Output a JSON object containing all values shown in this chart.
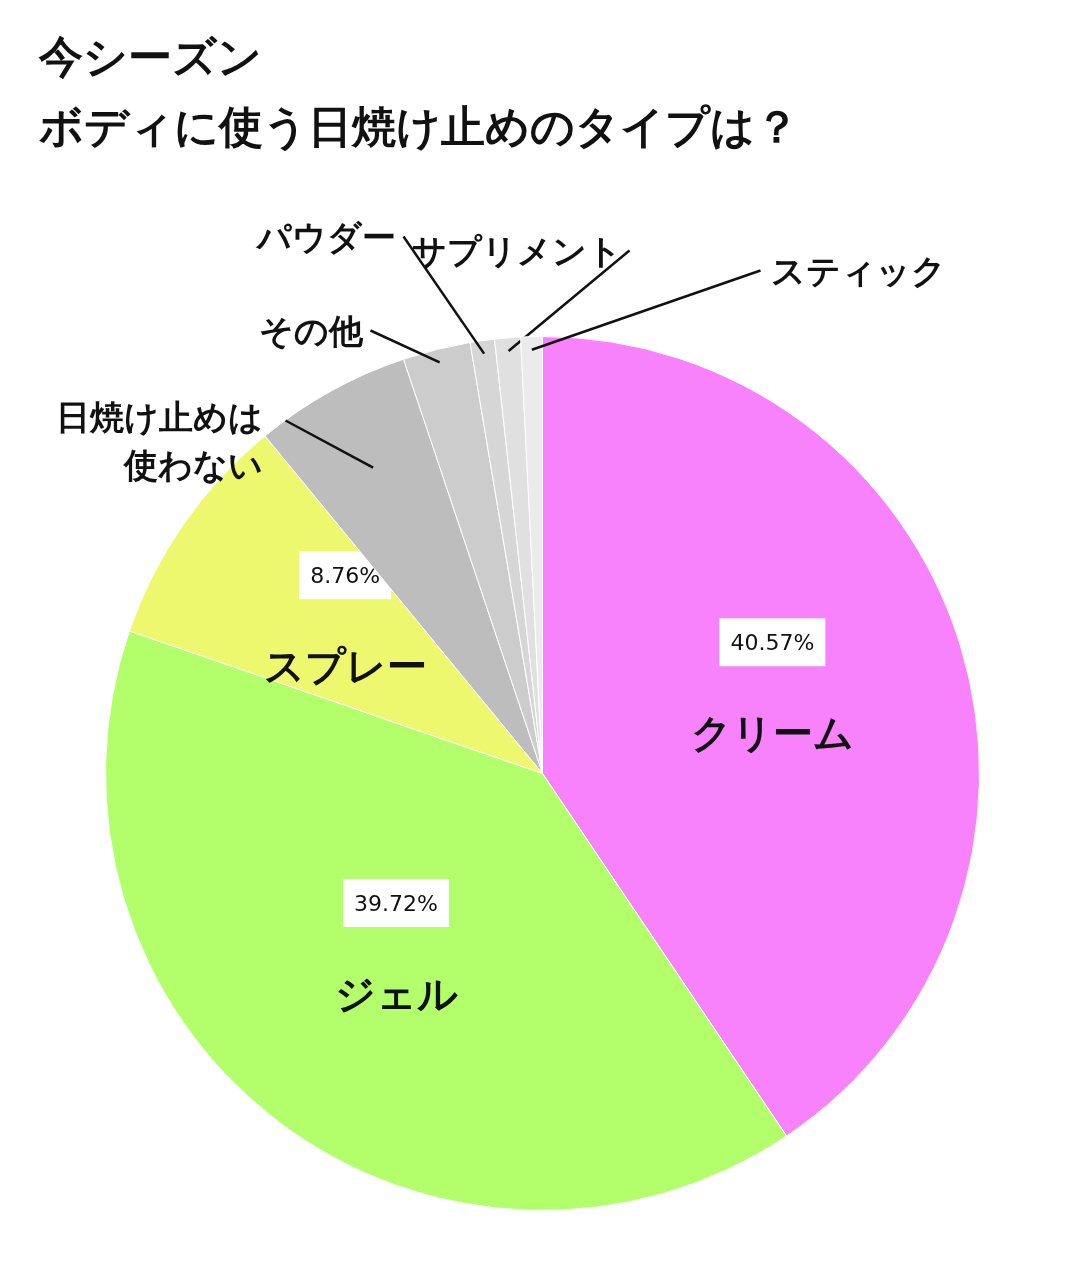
{
  "chart_data": {
    "type": "pie",
    "title": "今シーズン",
    "subtitle": "ボディに使う日焼け止めのタイプは？",
    "categories": [
      "クリーム",
      "ジェル",
      "スプレー",
      "日焼け止めは使わない",
      "その他",
      "パウダー",
      "サプリメント",
      "スティック"
    ],
    "values": [
      40.57,
      39.72,
      8.76,
      5.8,
      2.5,
      0.9,
      0.95,
      0.8
    ],
    "colors": [
      "#f782fb",
      "#b3ff6b",
      "#edf86e",
      "#bdbdbd",
      "#cccccc",
      "#d6d6d6",
      "#e0e0e0",
      "#ebebeb"
    ],
    "value_labels": [
      "40.57%",
      "39.72%",
      "8.76%",
      null,
      null,
      null,
      null,
      null
    ]
  }
}
